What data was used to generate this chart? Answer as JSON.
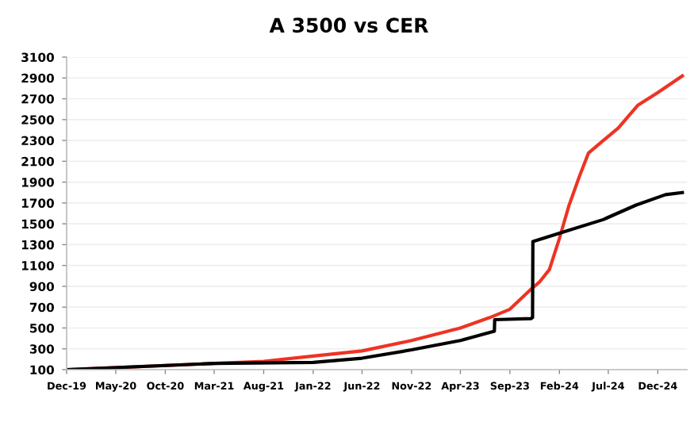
{
  "chart_data": {
    "type": "line",
    "title": "A 3500 vs CER",
    "xlim": [
      "2019-12-01",
      "2025-03-01"
    ],
    "xticks": [
      {
        "value": "2019-12-01",
        "label": "Dec-19"
      },
      {
        "value": "2020-05-01",
        "label": "May-20"
      },
      {
        "value": "2020-10-01",
        "label": "Oct-20"
      },
      {
        "value": "2021-03-01",
        "label": "Mar-21"
      },
      {
        "value": "2021-08-01",
        "label": "Aug-21"
      },
      {
        "value": "2022-01-01",
        "label": "Jan-22"
      },
      {
        "value": "2022-06-01",
        "label": "Jun-22"
      },
      {
        "value": "2022-11-01",
        "label": "Nov-22"
      },
      {
        "value": "2023-04-01",
        "label": "Apr-23"
      },
      {
        "value": "2023-09-01",
        "label": "Sep-23"
      },
      {
        "value": "2024-02-01",
        "label": "Feb-24"
      },
      {
        "value": "2024-07-01",
        "label": "Jul-24"
      },
      {
        "value": "2024-12-01",
        "label": "Dec-24"
      }
    ],
    "ylim": [
      100,
      3100
    ],
    "yticks": [
      100,
      300,
      500,
      700,
      900,
      1100,
      1300,
      1500,
      1700,
      1900,
      2100,
      2300,
      2500,
      2700,
      2900,
      3100
    ],
    "grid": "y",
    "line_style": "solid",
    "marker": "none",
    "series": [
      {
        "color": "#ee3324",
        "x": [
          "2019-12-01",
          "2021-08-01",
          "2022-01-01",
          "2022-06-01",
          "2022-11-01",
          "2023-04-01",
          "2023-07-01",
          "2023-09-01",
          "2023-11-01",
          "2023-12-01",
          "2024-01-01",
          "2024-02-01",
          "2024-03-01",
          "2024-04-01",
          "2024-05-01",
          "2024-08-01",
          "2024-10-01",
          "2024-12-01",
          "2025-02-15"
        ],
        "values": [
          100,
          180,
          230,
          280,
          380,
          500,
          600,
          680,
          860,
          940,
          1060,
          1360,
          1670,
          1940,
          2180,
          2420,
          2640,
          2760,
          2920
        ]
      },
      {
        "color": "#000000",
        "x": [
          "2019-12-01",
          "2021-03-01",
          "2022-01-01",
          "2022-06-01",
          "2022-11-01",
          "2023-04-01",
          "2023-07-15",
          "2023-07-16",
          "2023-11-05",
          "2023-11-10",
          "2023-11-11",
          "2024-02-01",
          "2024-06-15",
          "2024-09-25",
          "2024-12-25",
          "2025-02-15"
        ],
        "values": [
          100,
          160,
          170,
          210,
          290,
          380,
          470,
          580,
          590,
          600,
          1330,
          1410,
          1540,
          1680,
          1780,
          1800
        ]
      }
    ]
  }
}
